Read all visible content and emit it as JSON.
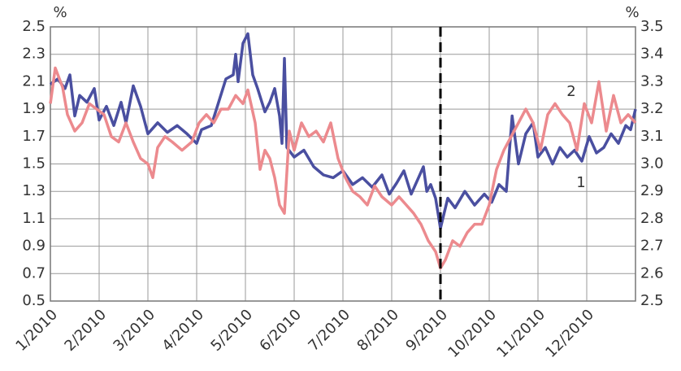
{
  "chart_data": {
    "type": "line",
    "y_label": "%",
    "y2_label": "%",
    "xlim": [
      0,
      12
    ],
    "xticks": [
      {
        "value": 0,
        "label": "1/2010"
      },
      {
        "value": 1,
        "label": "2/2010"
      },
      {
        "value": 2,
        "label": "3/2010"
      },
      {
        "value": 3,
        "label": "4/2010"
      },
      {
        "value": 4,
        "label": "5/2010"
      },
      {
        "value": 5,
        "label": "6/2010"
      },
      {
        "value": 6,
        "label": "7/2010"
      },
      {
        "value": 7,
        "label": "8/2010"
      },
      {
        "value": 8,
        "label": "9/2010"
      },
      {
        "value": 9,
        "label": "10/2010"
      },
      {
        "value": 10,
        "label": "11/2010"
      },
      {
        "value": 11,
        "label": "12/2010"
      }
    ],
    "ylim": [
      0.5,
      2.5
    ],
    "yticks": [
      0.5,
      0.7,
      0.9,
      1.1,
      1.3,
      1.5,
      1.7,
      1.9,
      2.1,
      2.3,
      2.5
    ],
    "y2lim": [
      2.5,
      3.5
    ],
    "y2ticks": [
      2.5,
      2.6,
      2.7,
      2.8,
      2.9,
      {
        "value": 3,
        "label": "3.0"
      },
      3.1,
      3.2,
      3.3,
      3.4,
      3.5
    ],
    "grid": true,
    "vline": 8,
    "series": [
      {
        "name": "1",
        "color": "#4a4fa0",
        "x": [
          0,
          0.15,
          0.3,
          0.4,
          0.5,
          0.6,
          0.75,
          0.9,
          1.0,
          1.15,
          1.3,
          1.45,
          1.55,
          1.7,
          1.85,
          2.0,
          2.2,
          2.4,
          2.6,
          2.8,
          3.0,
          3.1,
          3.3,
          3.45,
          3.6,
          3.75,
          3.8,
          3.85,
          3.95,
          4.05,
          4.15,
          4.25,
          4.4,
          4.5,
          4.6,
          4.7,
          4.75,
          4.8,
          4.85,
          5.0,
          5.2,
          5.4,
          5.6,
          5.8,
          6.0,
          6.2,
          6.4,
          6.6,
          6.8,
          6.95,
          7.1,
          7.25,
          7.4,
          7.55,
          7.65,
          7.72,
          7.8,
          7.9,
          8.0,
          8.15,
          8.3,
          8.5,
          8.7,
          8.9,
          9.05,
          9.2,
          9.35,
          9.47,
          9.6,
          9.75,
          9.9,
          10.0,
          10.15,
          10.3,
          10.45,
          10.6,
          10.75,
          10.9,
          11.05,
          11.2,
          11.35,
          11.5,
          11.65,
          11.8,
          11.9,
          12.0
        ],
        "values": [
          2.08,
          2.12,
          2.05,
          2.15,
          1.85,
          2.0,
          1.95,
          2.05,
          1.82,
          1.92,
          1.78,
          1.95,
          1.8,
          2.07,
          1.92,
          1.72,
          1.8,
          1.73,
          1.78,
          1.72,
          1.65,
          1.75,
          1.78,
          1.95,
          2.12,
          2.15,
          2.3,
          2.1,
          2.38,
          2.45,
          2.15,
          2.05,
          1.88,
          1.95,
          2.05,
          1.85,
          1.65,
          2.27,
          1.62,
          1.55,
          1.6,
          1.48,
          1.42,
          1.4,
          1.45,
          1.35,
          1.4,
          1.33,
          1.42,
          1.28,
          1.36,
          1.45,
          1.28,
          1.4,
          1.48,
          1.3,
          1.35,
          1.25,
          1.03,
          1.25,
          1.18,
          1.3,
          1.2,
          1.28,
          1.22,
          1.35,
          1.3,
          1.85,
          1.5,
          1.72,
          1.8,
          1.55,
          1.62,
          1.5,
          1.62,
          1.55,
          1.6,
          1.52,
          1.7,
          1.58,
          1.62,
          1.72,
          1.65,
          1.78,
          1.75,
          1.9
        ]
      },
      {
        "name": "2",
        "color": "#ec8a8e",
        "axis": "y2",
        "x": [
          0,
          0.1,
          0.25,
          0.35,
          0.5,
          0.65,
          0.8,
          0.95,
          1.1,
          1.25,
          1.4,
          1.55,
          1.7,
          1.85,
          2.0,
          2.1,
          2.2,
          2.35,
          2.5,
          2.7,
          2.9,
          3.05,
          3.2,
          3.35,
          3.5,
          3.65,
          3.8,
          3.95,
          4.05,
          4.2,
          4.3,
          4.4,
          4.5,
          4.6,
          4.7,
          4.8,
          4.9,
          5.0,
          5.15,
          5.3,
          5.45,
          5.6,
          5.75,
          5.9,
          6.05,
          6.2,
          6.35,
          6.5,
          6.65,
          6.8,
          7.0,
          7.15,
          7.3,
          7.45,
          7.6,
          7.75,
          7.9,
          8.0,
          8.1,
          8.25,
          8.4,
          8.55,
          8.7,
          8.85,
          9.0,
          9.15,
          9.3,
          9.45,
          9.6,
          9.75,
          9.9,
          10.05,
          10.2,
          10.35,
          10.5,
          10.65,
          10.8,
          10.95,
          11.1,
          11.25,
          11.4,
          11.55,
          11.7,
          11.85,
          12.0
        ],
        "values": [
          3.22,
          3.35,
          3.28,
          3.18,
          3.12,
          3.15,
          3.22,
          3.2,
          3.18,
          3.1,
          3.08,
          3.15,
          3.08,
          3.02,
          3.0,
          2.95,
          3.06,
          3.1,
          3.08,
          3.05,
          3.08,
          3.15,
          3.18,
          3.15,
          3.2,
          3.2,
          3.25,
          3.22,
          3.27,
          3.15,
          2.98,
          3.05,
          3.02,
          2.95,
          2.85,
          2.82,
          3.12,
          3.05,
          3.15,
          3.1,
          3.12,
          3.08,
          3.15,
          3.02,
          2.95,
          2.9,
          2.88,
          2.85,
          2.92,
          2.88,
          2.85,
          2.88,
          2.85,
          2.82,
          2.78,
          2.72,
          2.68,
          2.62,
          2.65,
          2.72,
          2.7,
          2.75,
          2.78,
          2.78,
          2.85,
          2.98,
          3.05,
          3.1,
          3.15,
          3.2,
          3.15,
          3.05,
          3.18,
          3.22,
          3.18,
          3.15,
          3.05,
          3.22,
          3.15,
          3.3,
          3.12,
          3.25,
          3.15,
          3.18,
          3.15
        ]
      }
    ]
  }
}
